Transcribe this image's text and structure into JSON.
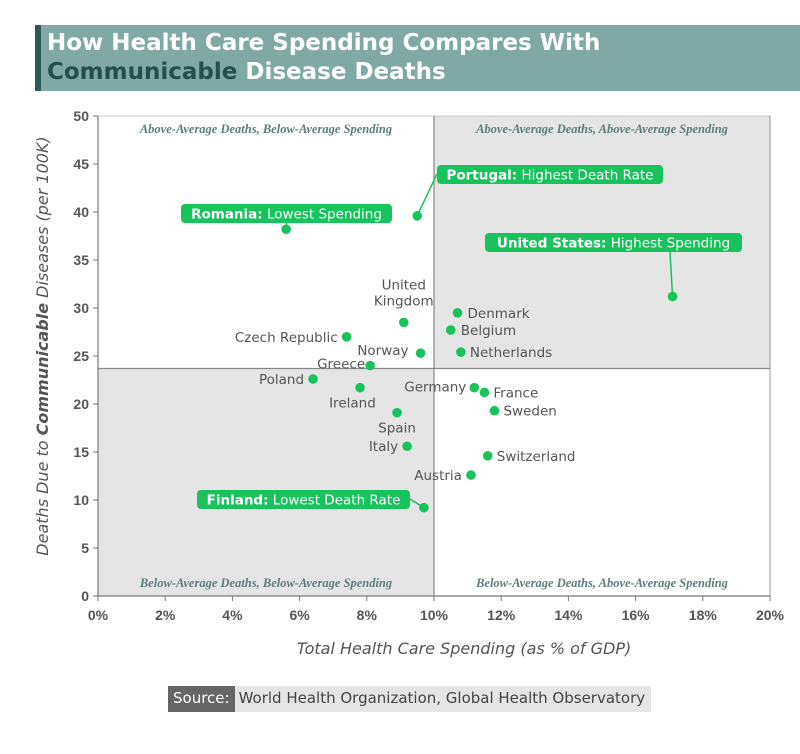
{
  "title": {
    "line1": "How Health Care Spending Compares With",
    "line2_highlight": "Communicable",
    "line2_rest": " Disease Deaths"
  },
  "source": {
    "label": "Source:",
    "text": "World Health Organization, Global Health Observatory"
  },
  "colors": {
    "point": "#19c35c",
    "callout": "#19c35c",
    "shade": "#e5e5e5",
    "title_bg": "#7fa9a4",
    "quadrant_text": "#5d7e7b"
  },
  "chart_data": {
    "type": "scatter",
    "xlabel": "Total Health Care Spending (as % of GDP)",
    "ylabel_parts": [
      "Deaths Due to ",
      "Communicable",
      " Diseases (per 100K)"
    ],
    "xlim": [
      0,
      20
    ],
    "ylim": [
      0,
      50
    ],
    "xticks": [
      0,
      2,
      4,
      6,
      8,
      10,
      12,
      14,
      16,
      18,
      20
    ],
    "xtick_labels": [
      "0%",
      "2%",
      "4%",
      "6%",
      "8%",
      "10%",
      "12%",
      "14%",
      "16%",
      "18%",
      "20%"
    ],
    "yticks": [
      0,
      5,
      10,
      15,
      20,
      25,
      30,
      35,
      40,
      45,
      50
    ],
    "ytick_labels": [
      "0",
      "5",
      "10",
      "15",
      "20",
      "25",
      "30",
      "35",
      "40",
      "45",
      "50"
    ],
    "divider": {
      "x": 10,
      "y": 23.7
    },
    "quadrants": {
      "top_left": "Above-Average Deaths, Below-Average Spending",
      "top_right": "Above-Average Deaths, Above-Average Spending",
      "bottom_left": "Below-Average Deaths, Below-Average Spending",
      "bottom_right": "Below-Average Deaths, Above-Average Spending"
    },
    "points": [
      {
        "country": "Portugal",
        "x": 9.5,
        "y": 39.6
      },
      {
        "country": "Romania",
        "x": 5.6,
        "y": 38.2
      },
      {
        "country": "United States",
        "x": 17.1,
        "y": 31.2
      },
      {
        "country": "United Kingdom",
        "x": 9.1,
        "y": 28.5
      },
      {
        "country": "Denmark",
        "x": 10.7,
        "y": 29.5
      },
      {
        "country": "Belgium",
        "x": 10.5,
        "y": 27.7
      },
      {
        "country": "Czech Republic",
        "x": 7.4,
        "y": 27.0
      },
      {
        "country": "Norway",
        "x": 9.6,
        "y": 25.3
      },
      {
        "country": "Netherlands",
        "x": 10.8,
        "y": 25.4
      },
      {
        "country": "Greece",
        "x": 8.1,
        "y": 24.0
      },
      {
        "country": "Poland",
        "x": 6.4,
        "y": 22.6
      },
      {
        "country": "Ireland",
        "x": 7.8,
        "y": 21.7
      },
      {
        "country": "Germany",
        "x": 11.2,
        "y": 21.7
      },
      {
        "country": "France",
        "x": 11.5,
        "y": 21.2
      },
      {
        "country": "Sweden",
        "x": 11.8,
        "y": 19.3
      },
      {
        "country": "Spain",
        "x": 8.9,
        "y": 19.1
      },
      {
        "country": "Italy",
        "x": 9.2,
        "y": 15.6
      },
      {
        "country": "Switzerland",
        "x": 11.6,
        "y": 14.6
      },
      {
        "country": "Austria",
        "x": 11.1,
        "y": 12.6
      },
      {
        "country": "Finland",
        "x": 9.7,
        "y": 9.2
      }
    ],
    "callouts": [
      {
        "country": "Portugal",
        "bold": "Portugal:",
        "text": " Highest Death Rate"
      },
      {
        "country": "Romania",
        "bold": "Romania:",
        "text": " Lowest Spending"
      },
      {
        "country": "United States",
        "bold": "United States:",
        "text": " Highest Spending"
      },
      {
        "country": "Finland",
        "bold": "Finland:",
        "text": " Lowest Death Rate"
      }
    ]
  }
}
